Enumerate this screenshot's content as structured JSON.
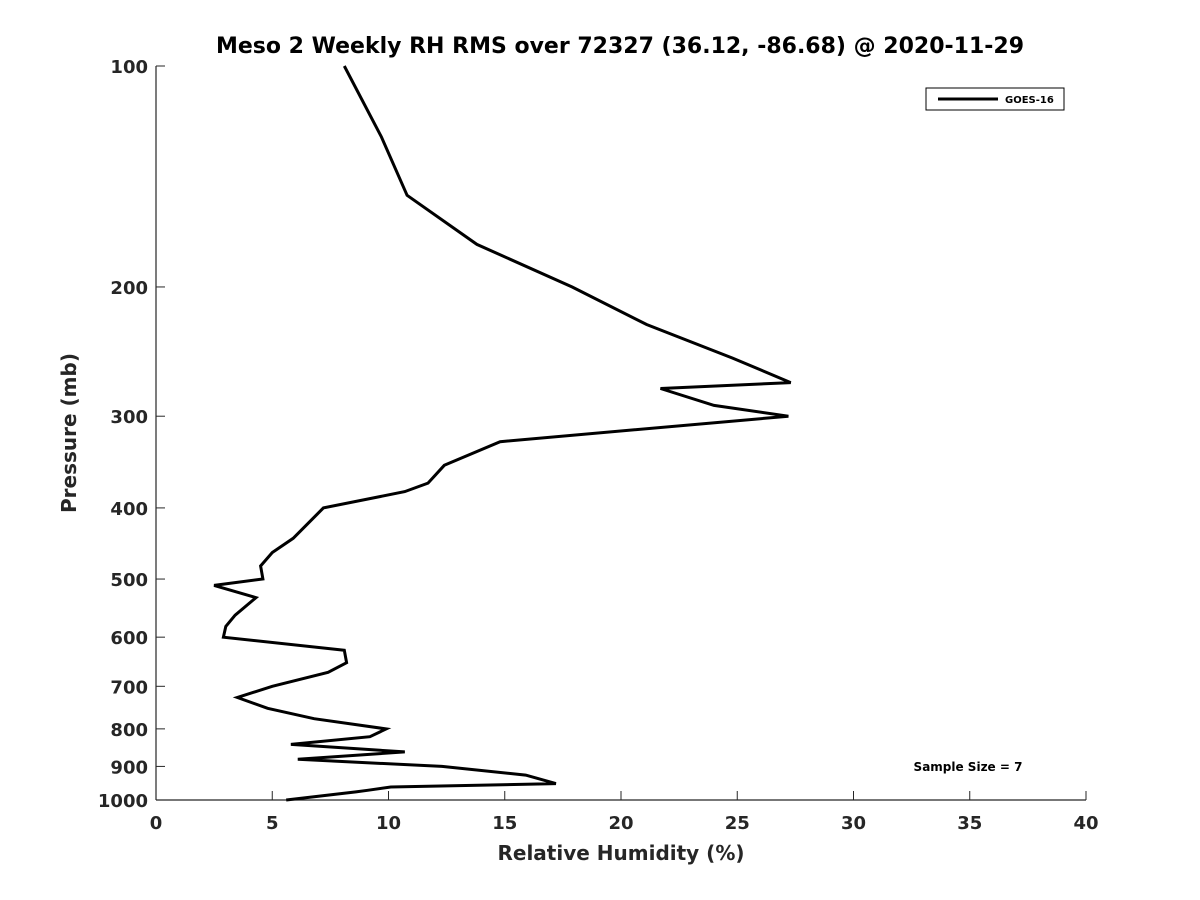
{
  "chart_data": {
    "type": "line",
    "title": "Meso 2 Weekly RH RMS over 72327 (36.12, -86.68) @ 2020-11-29",
    "xlabel": "Relative Humidity (%)",
    "ylabel": "Pressure (mb)",
    "xlim": [
      0,
      40
    ],
    "ylim": [
      100,
      1000
    ],
    "y_scale": "log",
    "y_reversed": true,
    "x_ticks": [
      0,
      5,
      10,
      15,
      20,
      25,
      30,
      35,
      40
    ],
    "y_ticks": [
      100,
      200,
      300,
      400,
      500,
      600,
      700,
      800,
      900,
      1000
    ],
    "grid": false,
    "legend_position": "top-right",
    "annotation": "Sample Size = 7",
    "series": [
      {
        "name": "GOES-16",
        "color": "#000000",
        "points": [
          [
            8.1,
            100
          ],
          [
            9.7,
            125
          ],
          [
            10.8,
            150
          ],
          [
            13.8,
            175
          ],
          [
            17.9,
            200
          ],
          [
            21.1,
            225
          ],
          [
            24.8,
            250
          ],
          [
            27.3,
            270
          ],
          [
            21.7,
            275
          ],
          [
            24.0,
            290
          ],
          [
            27.2,
            300
          ],
          [
            14.8,
            325
          ],
          [
            12.4,
            350
          ],
          [
            11.7,
            370
          ],
          [
            10.7,
            380
          ],
          [
            7.2,
            400
          ],
          [
            5.9,
            440
          ],
          [
            5.0,
            460
          ],
          [
            4.5,
            480
          ],
          [
            4.6,
            500
          ],
          [
            2.5,
            510
          ],
          [
            4.3,
            530
          ],
          [
            3.4,
            560
          ],
          [
            3.0,
            580
          ],
          [
            2.9,
            600
          ],
          [
            8.1,
            625
          ],
          [
            8.2,
            650
          ],
          [
            7.4,
            670
          ],
          [
            5.0,
            700
          ],
          [
            3.5,
            725
          ],
          [
            4.8,
            750
          ],
          [
            6.8,
            775
          ],
          [
            9.9,
            800
          ],
          [
            9.2,
            820
          ],
          [
            5.8,
            840
          ],
          [
            10.7,
            860
          ],
          [
            6.1,
            880
          ],
          [
            12.3,
            900
          ],
          [
            15.9,
            925
          ],
          [
            17.2,
            950
          ],
          [
            10.1,
            960
          ],
          [
            9.1,
            970
          ],
          [
            8.6,
            975
          ],
          [
            5.6,
            1000
          ]
        ]
      }
    ]
  }
}
